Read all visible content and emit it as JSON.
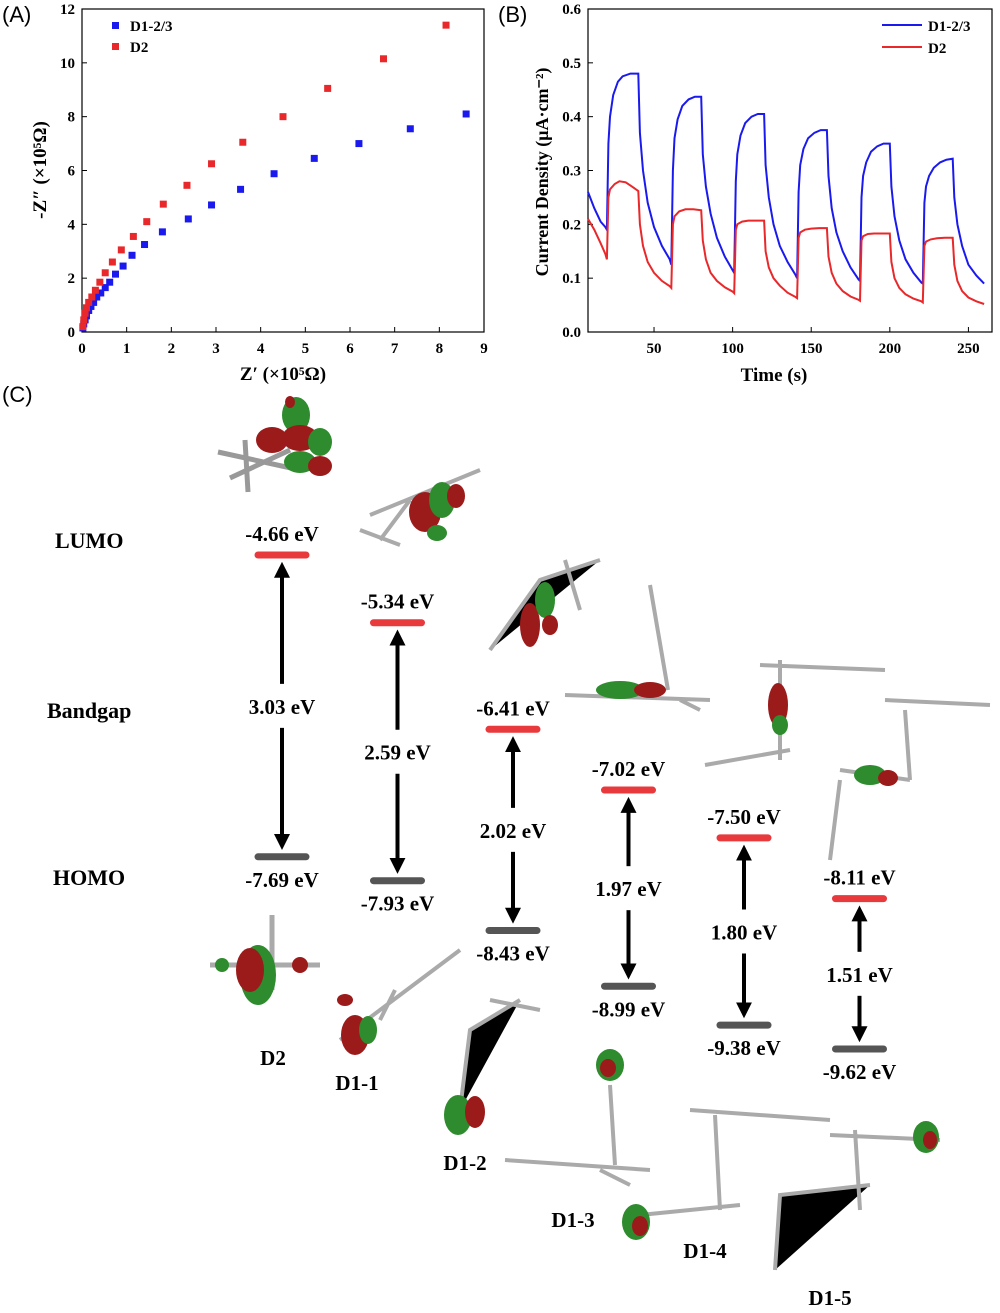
{
  "panel_labels": {
    "a": "(A)",
    "b": "(B)",
    "c": "(C)"
  },
  "colors": {
    "d1": "#1a1aee",
    "d2": "#e8282a",
    "lumo_bar": "#e8393d",
    "homo_bar": "#555555"
  },
  "chart_data": [
    {
      "type": "scatter",
      "xlabel": "Z′ (×10⁵Ω)",
      "ylabel": "-Z″ (×10⁵Ω)",
      "xlim": [
        0,
        9
      ],
      "ylim": [
        0,
        12
      ],
      "xticks": [
        "0",
        "1",
        "2",
        "3",
        "4",
        "5",
        "6",
        "7",
        "8",
        "9"
      ],
      "yticks": [
        "0",
        "2",
        "4",
        "6",
        "8",
        "10",
        "12"
      ],
      "legend_position": "top-left",
      "series": [
        {
          "name": "D1-2/3",
          "color": "#1a1aee",
          "points": [
            [
              0.02,
              0.15
            ],
            [
              0.04,
              0.3
            ],
            [
              0.07,
              0.45
            ],
            [
              0.1,
              0.6
            ],
            [
              0.15,
              0.8
            ],
            [
              0.2,
              0.95
            ],
            [
              0.26,
              1.1
            ],
            [
              0.33,
              1.3
            ],
            [
              0.42,
              1.45
            ],
            [
              0.52,
              1.65
            ],
            [
              0.62,
              1.85
            ],
            [
              0.75,
              2.15
            ],
            [
              0.92,
              2.45
            ],
            [
              1.12,
              2.85
            ],
            [
              1.4,
              3.25
            ],
            [
              1.8,
              3.72
            ],
            [
              2.38,
              4.2
            ],
            [
              2.9,
              4.72
            ],
            [
              3.55,
              5.3
            ],
            [
              4.3,
              5.88
            ],
            [
              5.2,
              6.45
            ],
            [
              6.2,
              7.0
            ],
            [
              7.35,
              7.55
            ],
            [
              8.6,
              8.1
            ]
          ]
        },
        {
          "name": "D2",
          "color": "#e8282a",
          "points": [
            [
              0.02,
              0.2
            ],
            [
              0.04,
              0.45
            ],
            [
              0.07,
              0.7
            ],
            [
              0.1,
              0.9
            ],
            [
              0.15,
              1.1
            ],
            [
              0.22,
              1.3
            ],
            [
              0.3,
              1.55
            ],
            [
              0.4,
              1.85
            ],
            [
              0.52,
              2.2
            ],
            [
              0.68,
              2.6
            ],
            [
              0.88,
              3.05
            ],
            [
              1.15,
              3.55
            ],
            [
              1.45,
              4.1
            ],
            [
              1.82,
              4.75
            ],
            [
              2.35,
              5.45
            ],
            [
              2.9,
              6.25
            ],
            [
              3.6,
              7.05
            ],
            [
              4.5,
              8.0
            ],
            [
              5.5,
              9.05
            ],
            [
              6.75,
              10.15
            ],
            [
              8.15,
              11.4
            ]
          ]
        }
      ]
    },
    {
      "type": "line",
      "xlabel": "Time (s)",
      "ylabel": "Current Density (μA·cm⁻²)",
      "xlim": [
        8,
        265
      ],
      "ylim": [
        0,
        0.6
      ],
      "xticks": [
        50,
        100,
        150,
        200,
        250
      ],
      "yticks": [
        "0.0",
        "0.1",
        "0.2",
        "0.3",
        "0.4",
        "0.5",
        "0.6"
      ],
      "legend_position": "top-right",
      "series": [
        {
          "name": "D1-2/3",
          "color": "#1a1aee",
          "points": [
            [
              8,
              0.26
            ],
            [
              12,
              0.23
            ],
            [
              16,
              0.205
            ],
            [
              19,
              0.195
            ],
            [
              20,
              0.19
            ],
            [
              21,
              0.35
            ],
            [
              22,
              0.4
            ],
            [
              24,
              0.44
            ],
            [
              27,
              0.465
            ],
            [
              30,
              0.475
            ],
            [
              35,
              0.48
            ],
            [
              40,
              0.48
            ],
            [
              41,
              0.37
            ],
            [
              43,
              0.3
            ],
            [
              46,
              0.24
            ],
            [
              50,
              0.195
            ],
            [
              55,
              0.16
            ],
            [
              60,
              0.135
            ],
            [
              61,
              0.125
            ],
            [
              62,
              0.3
            ],
            [
              63,
              0.36
            ],
            [
              65,
              0.395
            ],
            [
              68,
              0.42
            ],
            [
              72,
              0.432
            ],
            [
              76,
              0.437
            ],
            [
              80,
              0.437
            ],
            [
              81,
              0.33
            ],
            [
              83,
              0.27
            ],
            [
              86,
              0.22
            ],
            [
              90,
              0.175
            ],
            [
              95,
              0.14
            ],
            [
              100,
              0.115
            ],
            [
              101,
              0.11
            ],
            [
              102,
              0.28
            ],
            [
              103,
              0.33
            ],
            [
              105,
              0.365
            ],
            [
              108,
              0.388
            ],
            [
              112,
              0.4
            ],
            [
              116,
              0.405
            ],
            [
              120,
              0.405
            ],
            [
              121,
              0.31
            ],
            [
              123,
              0.25
            ],
            [
              126,
              0.2
            ],
            [
              130,
              0.16
            ],
            [
              135,
              0.13
            ],
            [
              140,
              0.106
            ],
            [
              141,
              0.1
            ],
            [
              142,
              0.26
            ],
            [
              143,
              0.31
            ],
            [
              145,
              0.34
            ],
            [
              148,
              0.36
            ],
            [
              152,
              0.37
            ],
            [
              156,
              0.375
            ],
            [
              160,
              0.375
            ],
            [
              161,
              0.29
            ],
            [
              163,
              0.23
            ],
            [
              166,
              0.185
            ],
            [
              170,
              0.15
            ],
            [
              175,
              0.12
            ],
            [
              180,
              0.098
            ],
            [
              181,
              0.095
            ],
            [
              182,
              0.25
            ],
            [
              183,
              0.29
            ],
            [
              185,
              0.315
            ],
            [
              188,
              0.335
            ],
            [
              192,
              0.345
            ],
            [
              196,
              0.35
            ],
            [
              200,
              0.35
            ],
            [
              201,
              0.27
            ],
            [
              203,
              0.215
            ],
            [
              206,
              0.17
            ],
            [
              210,
              0.135
            ],
            [
              215,
              0.11
            ],
            [
              220,
              0.092
            ],
            [
              221,
              0.09
            ],
            [
              222,
              0.24
            ],
            [
              223,
              0.27
            ],
            [
              225,
              0.29
            ],
            [
              228,
              0.305
            ],
            [
              232,
              0.315
            ],
            [
              236,
              0.32
            ],
            [
              240,
              0.322
            ],
            [
              241,
              0.25
            ],
            [
              243,
              0.2
            ],
            [
              246,
              0.16
            ],
            [
              250,
              0.125
            ],
            [
              255,
              0.105
            ],
            [
              260,
              0.09
            ]
          ]
        },
        {
          "name": "D2",
          "color": "#e8282a",
          "points": [
            [
              8,
              0.21
            ],
            [
              12,
              0.19
            ],
            [
              16,
              0.165
            ],
            [
              19,
              0.145
            ],
            [
              20,
              0.135
            ],
            [
              21,
              0.25
            ],
            [
              22,
              0.265
            ],
            [
              25,
              0.275
            ],
            [
              28,
              0.28
            ],
            [
              32,
              0.278
            ],
            [
              36,
              0.27
            ],
            [
              40,
              0.262
            ],
            [
              41,
              0.2
            ],
            [
              43,
              0.16
            ],
            [
              46,
              0.13
            ],
            [
              50,
              0.11
            ],
            [
              55,
              0.095
            ],
            [
              60,
              0.085
            ],
            [
              61,
              0.082
            ],
            [
              62,
              0.2
            ],
            [
              63,
              0.215
            ],
            [
              66,
              0.224
            ],
            [
              70,
              0.228
            ],
            [
              75,
              0.228
            ],
            [
              80,
              0.226
            ],
            [
              81,
              0.17
            ],
            [
              83,
              0.135
            ],
            [
              86,
              0.11
            ],
            [
              90,
              0.095
            ],
            [
              95,
              0.083
            ],
            [
              100,
              0.075
            ],
            [
              101,
              0.072
            ],
            [
              102,
              0.19
            ],
            [
              103,
              0.2
            ],
            [
              106,
              0.205
            ],
            [
              110,
              0.207
            ],
            [
              115,
              0.207
            ],
            [
              120,
              0.207
            ],
            [
              121,
              0.15
            ],
            [
              123,
              0.12
            ],
            [
              126,
              0.1
            ],
            [
              130,
              0.086
            ],
            [
              135,
              0.073
            ],
            [
              140,
              0.065
            ],
            [
              141,
              0.063
            ],
            [
              142,
              0.175
            ],
            [
              143,
              0.185
            ],
            [
              146,
              0.19
            ],
            [
              150,
              0.192
            ],
            [
              155,
              0.193
            ],
            [
              160,
              0.193
            ],
            [
              161,
              0.14
            ],
            [
              163,
              0.11
            ],
            [
              166,
              0.09
            ],
            [
              170,
              0.076
            ],
            [
              175,
              0.066
            ],
            [
              180,
              0.06
            ],
            [
              181,
              0.058
            ],
            [
              182,
              0.17
            ],
            [
              183,
              0.178
            ],
            [
              186,
              0.182
            ],
            [
              190,
              0.183
            ],
            [
              195,
              0.183
            ],
            [
              200,
              0.183
            ],
            [
              201,
              0.13
            ],
            [
              203,
              0.1
            ],
            [
              206,
              0.082
            ],
            [
              210,
              0.07
            ],
            [
              215,
              0.062
            ],
            [
              220,
              0.057
            ],
            [
              221,
              0.055
            ],
            [
              222,
              0.16
            ],
            [
              223,
              0.168
            ],
            [
              226,
              0.172
            ],
            [
              230,
              0.174
            ],
            [
              235,
              0.175
            ],
            [
              240,
              0.175
            ],
            [
              241,
              0.125
            ],
            [
              243,
              0.095
            ],
            [
              246,
              0.076
            ],
            [
              250,
              0.064
            ],
            [
              255,
              0.057
            ],
            [
              260,
              0.052
            ]
          ]
        }
      ]
    },
    {
      "type": "diagram",
      "row_labels": {
        "lumo": "LUMO",
        "bandgap": "Bandgap",
        "homo": "HOMO"
      },
      "levels": [
        {
          "name": "D2",
          "lumo": -4.66,
          "homo": -7.69,
          "gap": 3.03,
          "lumo_label": "-4.66 eV",
          "homo_label": "-7.69 eV",
          "gap_label": "3.03 eV"
        },
        {
          "name": "D1-1",
          "lumo": -5.34,
          "homo": -7.93,
          "gap": 2.59,
          "lumo_label": "-5.34 eV",
          "homo_label": "-7.93 eV",
          "gap_label": "2.59 eV"
        },
        {
          "name": "D1-2",
          "lumo": -6.41,
          "homo": -8.43,
          "gap": 2.02,
          "lumo_label": "-6.41 eV",
          "homo_label": "-8.43 eV",
          "gap_label": "2.02 eV"
        },
        {
          "name": "D1-3",
          "lumo": -7.02,
          "homo": -8.99,
          "gap": 1.97,
          "lumo_label": "-7.02 eV",
          "homo_label": "-8.99 eV",
          "gap_label": "1.97 eV"
        },
        {
          "name": "D1-4",
          "lumo": -7.5,
          "homo": -9.38,
          "gap": 1.8,
          "lumo_label": "-7.50 eV",
          "homo_label": "-9.38 eV",
          "gap_label": "1.80 eV"
        },
        {
          "name": "D1-5",
          "lumo": -8.11,
          "homo": -9.62,
          "gap": 1.51,
          "lumo_label": "-8.11 eV",
          "homo_label": "-9.62 eV",
          "gap_label": "1.51 eV"
        }
      ]
    }
  ]
}
